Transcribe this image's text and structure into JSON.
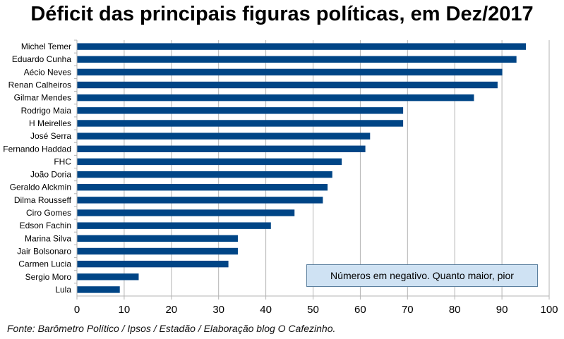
{
  "chart_data": {
    "type": "bar",
    "orientation": "horizontal",
    "title": "Déficit das principais figuras políticas, em Dez/2017",
    "categories": [
      "Michel Temer",
      "Eduardo Cunha",
      "Aécio Neves",
      "Renan Calheiros",
      "Gilmar Mendes",
      "Rodrigo Maia",
      "H Meirelles",
      "José Serra",
      "Fernando Haddad",
      "FHC",
      "João Doria",
      "Geraldo Alckmin",
      "Dilma Rousseff",
      "Ciro Gomes",
      "Edson Fachin",
      "Marina Silva",
      "Jair Bolsonaro",
      "Carmen Lucia",
      "Sergio Moro",
      "Lula"
    ],
    "values": [
      95,
      93,
      90,
      89,
      84,
      69,
      69,
      62,
      61,
      56,
      54,
      53,
      52,
      46,
      41,
      34,
      34,
      32,
      13,
      9
    ],
    "xlim": [
      0,
      100
    ],
    "xticks": [
      "0",
      "10",
      "20",
      "30",
      "40",
      "50",
      "60",
      "70",
      "80",
      "90",
      "100"
    ],
    "grid": true,
    "bar_color": "#004586",
    "annotation": "Números em negativo. Quanto maior, pior"
  },
  "source_note": "Fonte: Barômetro Político / Ipsos / Estadão / Elaboração blog O Cafezinho."
}
